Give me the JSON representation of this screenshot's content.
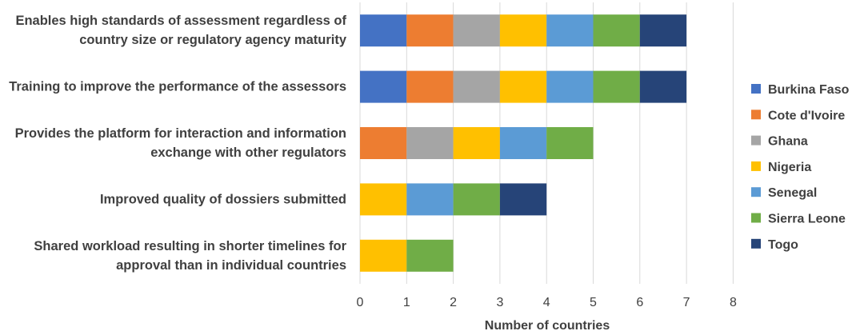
{
  "chart_data": {
    "type": "bar",
    "orientation": "horizontal",
    "stacked": true,
    "categories": [
      [
        "Enables high standards of assessment regardless of",
        "country size or regulatory agency maturity"
      ],
      [
        "Training to improve the performance of the assessors"
      ],
      [
        "Provides the platform for interaction and information",
        "exchange with other regulators"
      ],
      [
        "Improved quality of dossiers submitted"
      ],
      [
        "Shared workload resulting in shorter timelines for",
        "approval than in individual countries"
      ]
    ],
    "series": [
      {
        "name": "Burkina Faso",
        "color": "#4472C4",
        "values": [
          1,
          1,
          0,
          0,
          0
        ]
      },
      {
        "name": "Cote d'Ivoire",
        "color": "#ED7D31",
        "values": [
          1,
          1,
          1,
          0,
          0
        ]
      },
      {
        "name": "Ghana",
        "color": "#A5A5A5",
        "values": [
          1,
          1,
          1,
          0,
          0
        ]
      },
      {
        "name": "Nigeria",
        "color": "#FFC000",
        "values": [
          1,
          1,
          1,
          1,
          1
        ]
      },
      {
        "name": "Senegal",
        "color": "#5B9BD5",
        "values": [
          1,
          1,
          1,
          1,
          0
        ]
      },
      {
        "name": "Sierra Leone",
        "color": "#70AD47",
        "values": [
          1,
          1,
          1,
          1,
          1
        ]
      },
      {
        "name": "Togo",
        "color": "#264478",
        "values": [
          1,
          1,
          0,
          1,
          0
        ]
      }
    ],
    "xlabel": "Number of countries",
    "ylabel": "",
    "xlim": [
      0,
      8
    ],
    "xticks": [
      "0",
      "1",
      "2",
      "3",
      "4",
      "5",
      "6",
      "7",
      "8"
    ],
    "grid": true,
    "legend_position": "right"
  }
}
